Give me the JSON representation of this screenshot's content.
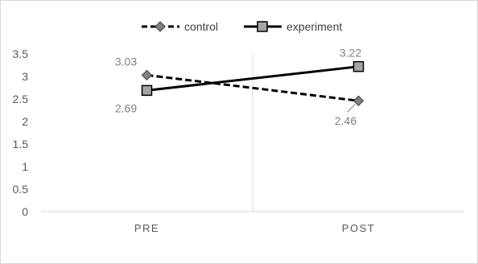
{
  "chart_data": {
    "type": "line",
    "categories": [
      "PRE",
      "POST"
    ],
    "ylim": [
      0,
      3.5
    ],
    "yticks": [
      "0",
      "0.5",
      "1",
      "1.5",
      "2",
      "2.5",
      "3",
      "3.5"
    ],
    "legend_position": "top",
    "grid": {
      "vertical": true,
      "horizontal": false
    },
    "series": [
      {
        "name": "control",
        "values": [
          3.03,
          2.46
        ],
        "labels": [
          "3.03",
          "2.46"
        ],
        "style": "dashed",
        "marker": "diamond",
        "color": "#000000",
        "marker_color": "#808080"
      },
      {
        "name": "experiment",
        "values": [
          2.69,
          3.22
        ],
        "labels": [
          "2.69",
          "3.22"
        ],
        "style": "solid",
        "marker": "square",
        "color": "#000000",
        "marker_color": "#a6a6a6"
      }
    ]
  }
}
